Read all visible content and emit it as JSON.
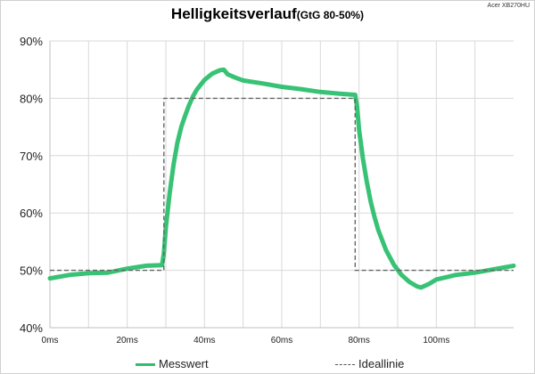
{
  "header": {
    "title": "Helligkeitsverlauf",
    "subtitle": "(GtG 80-50%)",
    "corner_label": "Acer XB270HU"
  },
  "legend": {
    "measured": "Messwert",
    "ideal": "Ideallinie"
  },
  "colors": {
    "measured": "#2dbf6e",
    "ideal": "#666666",
    "grid": "#d9d9d9"
  },
  "chart_data": {
    "type": "line",
    "title": "Helligkeitsverlauf",
    "subtitle": "(GtG 80-50%)",
    "xlabel": "",
    "ylabel": "",
    "xlim": [
      0,
      120
    ],
    "ylim": [
      40,
      90
    ],
    "x_ticks": [
      "0ms",
      "20ms",
      "40ms",
      "60ms",
      "80ms",
      "100ms"
    ],
    "x_tick_values": [
      0,
      20,
      40,
      60,
      80,
      100
    ],
    "y_ticks": [
      "40%",
      "50%",
      "60%",
      "70%",
      "80%",
      "90%"
    ],
    "y_tick_values": [
      40,
      50,
      60,
      70,
      80,
      90
    ],
    "grid": true,
    "legend_position": "bottom",
    "series": [
      {
        "name": "Messwert",
        "style": "solid",
        "x": [
          0,
          5,
          10,
          15,
          20,
          25,
          29,
          29.5,
          30,
          31,
          32,
          33,
          34,
          35,
          36,
          37,
          38,
          40,
          42,
          44,
          45,
          46,
          48,
          50,
          55,
          60,
          65,
          70,
          75,
          79,
          79.5,
          80,
          81,
          82,
          83,
          84,
          85,
          87,
          89,
          91,
          93,
          95,
          96,
          98,
          100,
          105,
          110,
          115,
          120
        ],
        "y": [
          48.6,
          49.2,
          49.5,
          49.6,
          50.3,
          50.8,
          50.9,
          53,
          57.5,
          63.5,
          68.5,
          72.3,
          75,
          77,
          78.8,
          80.3,
          81.5,
          83.2,
          84.3,
          84.9,
          85.0,
          84.2,
          83.6,
          83.1,
          82.6,
          82.0,
          81.6,
          81.1,
          80.8,
          80.6,
          78.5,
          74.5,
          69.5,
          65.5,
          62.0,
          59.3,
          57.0,
          53.5,
          51.0,
          49.2,
          48.0,
          47.2,
          47.0,
          47.6,
          48.4,
          49.2,
          49.6,
          50.2,
          50.8
        ]
      },
      {
        "name": "Ideallinie",
        "style": "dashed",
        "x": [
          0,
          29.5,
          29.5,
          79,
          79,
          120
        ],
        "y": [
          50,
          50,
          80,
          80,
          50,
          50
        ]
      }
    ]
  }
}
